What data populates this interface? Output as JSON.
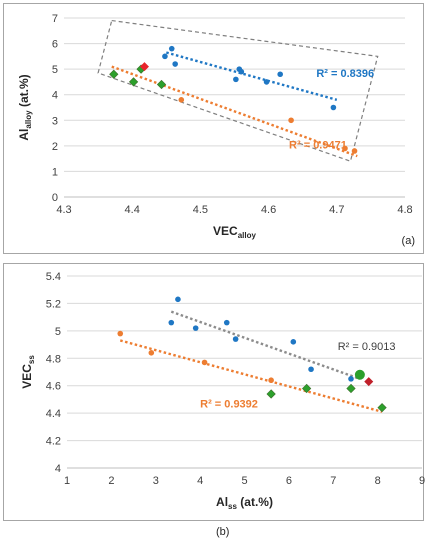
{
  "chart_data": [
    {
      "type": "scatter",
      "xlabel": {
        "main": "VEC",
        "sub": "alloy"
      },
      "ylabel": {
        "main": "Al",
        "sub": "alloy",
        "suffix": " (at.%)"
      },
      "xlim": [
        4.3,
        4.8
      ],
      "ylim": [
        0,
        7
      ],
      "xticks": [
        "4.3",
        "4.4",
        "4.5",
        "4.6",
        "4.7",
        "4.8"
      ],
      "yticks": [
        "0",
        "1",
        "2",
        "3",
        "4",
        "5",
        "6",
        "7"
      ],
      "grid": "horizontal",
      "panel_label": "(a)",
      "colors": {
        "blue": "#1f77c4",
        "orange": "#ed7d31",
        "green": "#2ca02c",
        "red": "#e8242b",
        "box": "#7f7f7f"
      },
      "series": [
        {
          "color": "blue",
          "marker": "circle",
          "points": [
            [
              4.448,
              5.5
            ],
            [
              4.458,
              5.8
            ],
            [
              4.463,
              5.2
            ],
            [
              4.552,
              4.6
            ],
            [
              4.557,
              5.0
            ],
            [
              4.56,
              4.9
            ],
            [
              4.597,
              4.5
            ],
            [
              4.617,
              4.8
            ],
            [
              4.695,
              3.5
            ]
          ]
        },
        {
          "color": "orange",
          "marker": "circle",
          "points": [
            [
              4.472,
              3.8
            ],
            [
              4.633,
              3.0
            ],
            [
              4.712,
              1.9
            ],
            [
              4.726,
              1.8
            ]
          ]
        },
        {
          "color": "green",
          "marker": "diamond",
          "points": [
            [
              4.373,
              4.8
            ],
            [
              4.402,
              4.5
            ],
            [
              4.413,
              5.0
            ],
            [
              4.443,
              4.4
            ]
          ]
        },
        {
          "color": "red",
          "marker": "diamond",
          "points": [
            [
              4.418,
              5.1
            ]
          ]
        }
      ],
      "trendlines": [
        {
          "color": "blue",
          "x": [
            4.45,
            4.7
          ],
          "y": [
            5.65,
            3.8
          ],
          "label": "R² = 0.8396",
          "label_at": [
            4.67,
            4.7
          ]
        },
        {
          "color": "orange",
          "x": [
            4.37,
            4.73
          ],
          "y": [
            5.1,
            1.6
          ],
          "label": "R² = 0.9471",
          "label_at": [
            4.63,
            1.9
          ]
        }
      ],
      "enclosure_box": [
        [
          4.37,
          6.9
        ],
        [
          4.76,
          5.5
        ],
        [
          4.72,
          1.4
        ],
        [
          4.35,
          4.85
        ]
      ]
    },
    {
      "type": "scatter",
      "xlabel": {
        "main": "Al",
        "sub": "ss",
        "suffix": " (at.%)"
      },
      "ylabel": {
        "main": "VEC",
        "sub": "ss",
        "suffix": ""
      },
      "xlim": [
        1,
        9
      ],
      "ylim": [
        4,
        5.4
      ],
      "xticks": [
        "1",
        "2",
        "3",
        "4",
        "5",
        "6",
        "7",
        "8",
        "9"
      ],
      "yticks": [
        "4",
        "4.2",
        "4.4",
        "4.6",
        "4.8",
        "5",
        "5.2",
        "5.4"
      ],
      "grid": "horizontal",
      "panel_label": "(b)",
      "colors": {
        "blue": "#1f77c4",
        "orange": "#ed7d31",
        "green": "#2ca02c",
        "red": "#c0202a",
        "gray": "#8c8c8c"
      },
      "series": [
        {
          "color": "blue",
          "marker": "circle",
          "points": [
            [
              3.35,
              5.06
            ],
            [
              3.5,
              5.23
            ],
            [
              3.9,
              5.02
            ],
            [
              4.6,
              5.06
            ],
            [
              4.8,
              4.94
            ],
            [
              6.1,
              4.92
            ],
            [
              6.5,
              4.72
            ],
            [
              7.4,
              4.65
            ]
          ]
        },
        {
          "color": "blue",
          "marker": "big-circle-green",
          "points": [
            [
              7.6,
              4.68
            ]
          ]
        },
        {
          "color": "orange",
          "marker": "circle",
          "points": [
            [
              2.2,
              4.98
            ],
            [
              2.9,
              4.84
            ],
            [
              4.1,
              4.77
            ],
            [
              5.6,
              4.64
            ],
            [
              6.4,
              4.58
            ]
          ]
        },
        {
          "color": "green",
          "marker": "diamond",
          "points": [
            [
              5.6,
              4.54
            ],
            [
              6.4,
              4.58
            ],
            [
              7.4,
              4.58
            ],
            [
              8.1,
              4.44
            ]
          ]
        },
        {
          "color": "red",
          "marker": "diamond",
          "points": [
            [
              7.8,
              4.63
            ]
          ]
        }
      ],
      "trendlines": [
        {
          "color": "gray",
          "x": [
            3.35,
            7.6
          ],
          "y": [
            5.14,
            4.65
          ],
          "label": "R² = 0.9013",
          "label_at": [
            7.1,
            4.86
          ]
        },
        {
          "color": "orange",
          "x": [
            2.2,
            8.1
          ],
          "y": [
            4.93,
            4.41
          ],
          "label": "R² = 0.9392",
          "label_at": [
            4.0,
            4.44
          ]
        }
      ]
    }
  ]
}
